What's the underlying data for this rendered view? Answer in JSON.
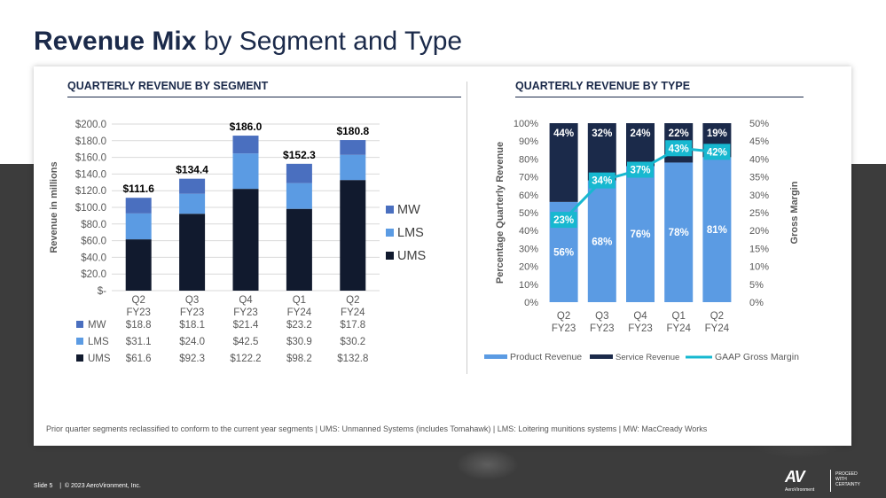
{
  "header": {
    "title_bold": "Revenue Mix",
    "title_rest": "by Segment and Type"
  },
  "left_section_title": "QUARTERLY REVENUE BY SEGMENT",
  "right_section_title": "QUARTERLY REVENUE BY TYPE",
  "footnote": "Prior quarter segments reclassified to conform to the current year segments | UMS: Unmanned Systems (includes Tomahawk)  |  LMS: Loitering munitions systems | MW: MacCready Works",
  "footer": {
    "slide": "Slide 5",
    "sep": "|",
    "copyright": "© 2023 AeroVironment, Inc."
  },
  "logo": {
    "mark": "AV",
    "name": "AeroVironment",
    "tag_lines": [
      "PROCEED",
      "WITH",
      "CERTAINTY"
    ]
  },
  "chart_data": [
    {
      "type": "bar",
      "stacked": true,
      "title": "QUARTERLY REVENUE BY SEGMENT",
      "ylabel": "Revenue in millions",
      "ylim": [
        0,
        200
      ],
      "y_ticks": [
        "$-",
        "$20.0",
        "$40.0",
        "$60.0",
        "$80.0",
        "$100.0",
        "$120.0",
        "$140.0",
        "$160.0",
        "$180.0",
        "$200.0"
      ],
      "categories": [
        [
          "Q2",
          "FY23"
        ],
        [
          "Q3",
          "FY23"
        ],
        [
          "Q4",
          "FY23"
        ],
        [
          "Q1",
          "FY24"
        ],
        [
          "Q2",
          "FY24"
        ]
      ],
      "totals": [
        "$111.6",
        "$134.4",
        "$186.0",
        "$152.3",
        "$180.8"
      ],
      "series": [
        {
          "name": "UMS",
          "color": "#111a2e",
          "values": [
            61.6,
            92.3,
            122.2,
            98.2,
            132.8
          ],
          "labels": [
            "$61.6",
            "$92.3",
            "$122.2",
            "$98.2",
            "$132.8"
          ]
        },
        {
          "name": "LMS",
          "color": "#5b9be3",
          "values": [
            31.1,
            24.0,
            42.5,
            30.9,
            30.2
          ],
          "labels": [
            "$31.1",
            "$24.0",
            "$42.5",
            "$30.9",
            "$30.2"
          ]
        },
        {
          "name": "MW",
          "color": "#4a6fbf",
          "values": [
            18.8,
            18.1,
            21.4,
            23.2,
            17.8
          ],
          "labels": [
            "$18.8",
            "$18.1",
            "$21.4",
            "$23.2",
            "$17.8"
          ]
        }
      ],
      "legend": [
        "MW",
        "LMS",
        "UMS"
      ],
      "table_rows": [
        "MW",
        "LMS",
        "UMS"
      ]
    },
    {
      "type": "bar",
      "stacked": true,
      "percent": true,
      "title": "QUARTERLY REVENUE BY TYPE",
      "ylabel": "Percentage Quarterly  Revenue",
      "y2label": "Gross Margin",
      "ylim": [
        0,
        100
      ],
      "y2lim": [
        0,
        50
      ],
      "y_ticks": [
        "0%",
        "10%",
        "20%",
        "30%",
        "40%",
        "50%",
        "60%",
        "70%",
        "80%",
        "90%",
        "100%"
      ],
      "y2_ticks": [
        "0%",
        "5%",
        "10%",
        "15%",
        "20%",
        "25%",
        "30%",
        "35%",
        "40%",
        "45%",
        "50%"
      ],
      "categories": [
        [
          "Q2",
          "FY23"
        ],
        [
          "Q3",
          "FY23"
        ],
        [
          "Q4",
          "FY23"
        ],
        [
          "Q1",
          "FY24"
        ],
        [
          "Q2",
          "FY24"
        ]
      ],
      "series": [
        {
          "name": "Product Revenue",
          "color": "#5b9be3",
          "values": [
            56,
            68,
            76,
            78,
            81
          ],
          "labels": [
            "56%",
            "68%",
            "76%",
            "78%",
            "81%"
          ]
        },
        {
          "name": "Service Revenue",
          "color": "#1b2a4a",
          "values": [
            44,
            32,
            24,
            22,
            19
          ],
          "labels": [
            "44%",
            "32%",
            "24%",
            "22%",
            "19%"
          ]
        }
      ],
      "line": {
        "name": "GAAP Gross Margin",
        "color": "#17b8d0",
        "values": [
          23,
          34,
          37,
          43,
          42
        ],
        "labels": [
          "23%",
          "34%",
          "37%",
          "43%",
          "42%"
        ]
      },
      "legend": [
        "Product Revenue",
        "Service Revenue",
        "GAAP Gross Margin"
      ]
    }
  ]
}
